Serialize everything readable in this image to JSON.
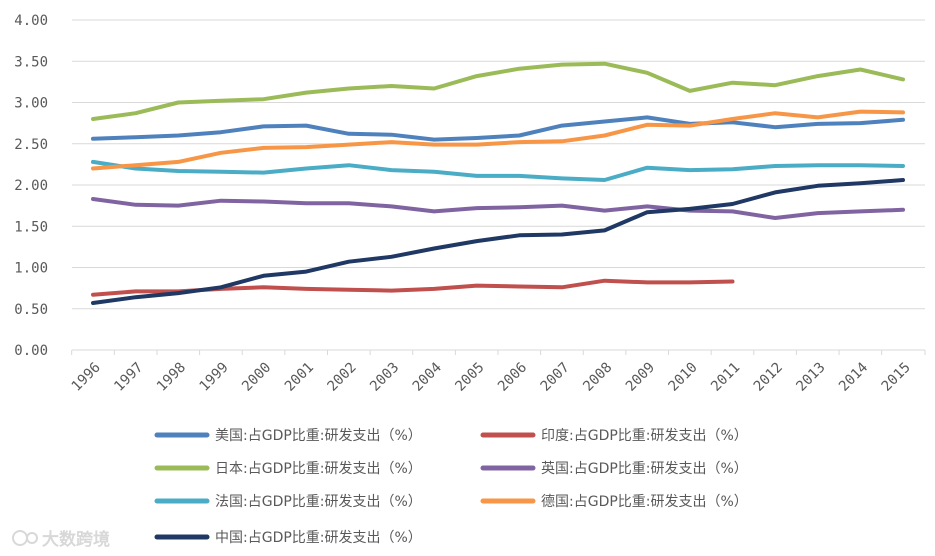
{
  "chart_data": {
    "type": "line",
    "title": "",
    "xlabel": "",
    "ylabel": "",
    "ylim": [
      0,
      4
    ],
    "yticks": [
      "0.00",
      "0.50",
      "1.00",
      "1.50",
      "2.00",
      "2.50",
      "3.00",
      "3.50",
      "4.00"
    ],
    "grid": true,
    "legend_position": "bottom",
    "x": [
      "1996",
      "1997",
      "1998",
      "1999",
      "2000",
      "2001",
      "2002",
      "2003",
      "2004",
      "2005",
      "2006",
      "2007",
      "2008",
      "2009",
      "2010",
      "2011",
      "2012",
      "2013",
      "2014",
      "2015"
    ],
    "series": [
      {
        "name": "美国:占GDP比重:研发支出（%）",
        "color": "#4f81bd",
        "values": [
          2.56,
          2.58,
          2.6,
          2.64,
          2.71,
          2.72,
          2.62,
          2.61,
          2.55,
          2.57,
          2.6,
          2.72,
          2.77,
          2.82,
          2.74,
          2.76,
          2.7,
          2.74,
          2.75,
          2.79
        ]
      },
      {
        "name": "印度:占GDP比重:研发支出（%）",
        "color": "#c0504d",
        "values": [
          0.67,
          0.71,
          0.71,
          0.74,
          0.76,
          0.74,
          0.73,
          0.72,
          0.74,
          0.78,
          0.77,
          0.76,
          0.84,
          0.82,
          0.82,
          0.83,
          null,
          null,
          null,
          null
        ]
      },
      {
        "name": "日本:占GDP比重:研发支出（%）",
        "color": "#9bbb59",
        "values": [
          2.8,
          2.87,
          3.0,
          3.02,
          3.04,
          3.12,
          3.17,
          3.2,
          3.17,
          3.32,
          3.41,
          3.46,
          3.47,
          3.36,
          3.14,
          3.24,
          3.21,
          3.32,
          3.4,
          3.28
        ]
      },
      {
        "name": "英国:占GDP比重:研发支出（%）",
        "color": "#8064a2",
        "values": [
          1.83,
          1.76,
          1.75,
          1.81,
          1.8,
          1.78,
          1.78,
          1.74,
          1.68,
          1.72,
          1.73,
          1.75,
          1.69,
          1.74,
          1.69,
          1.68,
          1.6,
          1.66,
          1.68,
          1.7
        ]
      },
      {
        "name": "法国:占GDP比重:研发支出（%）",
        "color": "#4bacc6",
        "values": [
          2.28,
          2.2,
          2.17,
          2.16,
          2.15,
          2.2,
          2.24,
          2.18,
          2.16,
          2.11,
          2.11,
          2.08,
          2.06,
          2.21,
          2.18,
          2.19,
          2.23,
          2.24,
          2.24,
          2.23
        ]
      },
      {
        "name": "德国:占GDP比重:研发支出（%）",
        "color": "#f79646",
        "values": [
          2.2,
          2.24,
          2.28,
          2.39,
          2.45,
          2.46,
          2.49,
          2.52,
          2.49,
          2.49,
          2.52,
          2.53,
          2.6,
          2.73,
          2.72,
          2.8,
          2.87,
          2.82,
          2.89,
          2.88
        ]
      },
      {
        "name": "中国:占GDP比重:研发支出（%）",
        "color": "#1f3864",
        "values": [
          0.57,
          0.64,
          0.69,
          0.76,
          0.9,
          0.95,
          1.07,
          1.13,
          1.23,
          1.32,
          1.39,
          1.4,
          1.45,
          1.67,
          1.71,
          1.77,
          1.91,
          1.99,
          2.02,
          2.06
        ]
      }
    ]
  },
  "watermark": "大数跨境"
}
